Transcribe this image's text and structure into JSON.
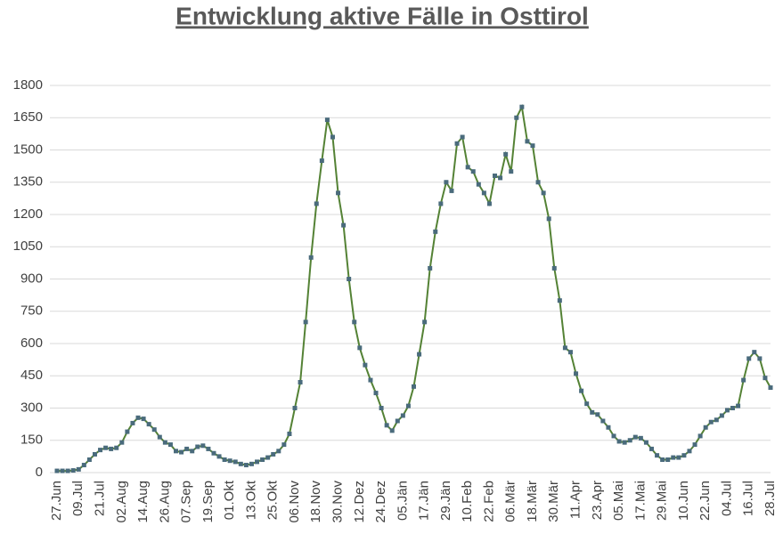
{
  "chart_data": {
    "type": "line",
    "title": "Entwicklung aktive Fälle in Osttirol",
    "categories": [
      "27.Jun",
      null,
      null,
      null,
      "09.Jul",
      null,
      null,
      null,
      "21.Jul",
      null,
      null,
      null,
      "02.Aug",
      null,
      null,
      null,
      "14.Aug",
      null,
      null,
      null,
      "26.Aug",
      null,
      null,
      null,
      "07.Sep",
      null,
      null,
      null,
      "19.Sep",
      null,
      null,
      null,
      "01.Okt",
      null,
      null,
      null,
      "13.Okt",
      null,
      null,
      null,
      "25.Okt",
      null,
      null,
      null,
      "06.Nov",
      null,
      null,
      null,
      "18.Nov",
      null,
      null,
      null,
      "30.Nov",
      null,
      null,
      null,
      "12.Dez",
      null,
      null,
      null,
      "24.Dez",
      null,
      null,
      null,
      "05.Jän",
      null,
      null,
      null,
      "17.Jän",
      null,
      null,
      null,
      "29.Jän",
      null,
      null,
      null,
      "10.Feb",
      null,
      null,
      null,
      "22.Feb",
      null,
      null,
      null,
      "06.Mär",
      null,
      null,
      null,
      "18.Mär",
      null,
      null,
      null,
      "30.Mär",
      null,
      null,
      null,
      "11.Apr",
      null,
      null,
      null,
      "23.Apr",
      null,
      null,
      null,
      "05.Mai",
      null,
      null,
      null,
      "17.Mai",
      null,
      null,
      null,
      "29.Mai",
      null,
      null,
      null,
      "10.Jun",
      null,
      null,
      null,
      "22.Jun",
      null,
      null,
      null,
      "04.Jul",
      null,
      null,
      null,
      "16.Jul",
      null,
      null,
      null,
      "28.Jul"
    ],
    "values": [
      8,
      8,
      8,
      10,
      15,
      35,
      60,
      85,
      105,
      115,
      110,
      115,
      140,
      190,
      230,
      255,
      250,
      225,
      200,
      165,
      140,
      130,
      100,
      95,
      110,
      100,
      120,
      125,
      110,
      90,
      75,
      60,
      55,
      50,
      40,
      35,
      40,
      50,
      60,
      70,
      85,
      100,
      130,
      180,
      300,
      420,
      700,
      1000,
      1250,
      1450,
      1640,
      1560,
      1300,
      1150,
      900,
      700,
      580,
      500,
      430,
      370,
      300,
      220,
      195,
      240,
      265,
      310,
      400,
      550,
      700,
      950,
      1120,
      1250,
      1350,
      1310,
      1530,
      1560,
      1420,
      1400,
      1340,
      1300,
      1250,
      1380,
      1370,
      1480,
      1400,
      1650,
      1700,
      1540,
      1520,
      1350,
      1300,
      1180,
      950,
      800,
      580,
      560,
      460,
      380,
      320,
      280,
      270,
      240,
      210,
      170,
      145,
      140,
      150,
      165,
      160,
      140,
      110,
      80,
      60,
      60,
      70,
      70,
      80,
      100,
      130,
      170,
      210,
      235,
      245,
      265,
      290,
      300,
      310,
      430,
      530,
      560,
      530,
      440,
      395
    ],
    "color": "#548235",
    "marker_color": "#4a6b7c",
    "ylim": [
      0,
      1800
    ],
    "yticks": [
      0,
      150,
      300,
      450,
      600,
      750,
      900,
      1050,
      1200,
      1350,
      1500,
      1650,
      1800
    ],
    "grid": true
  }
}
